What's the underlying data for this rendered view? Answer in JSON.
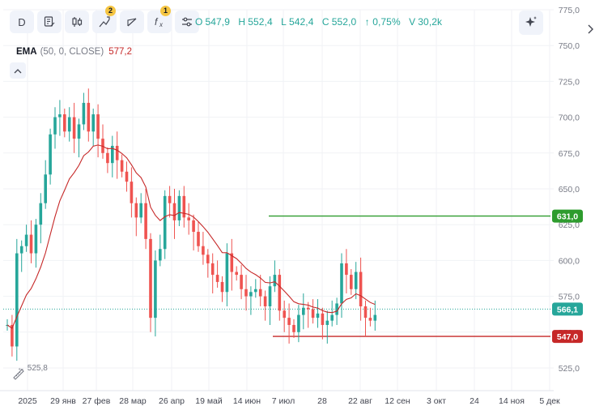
{
  "toolbar": {
    "interval_label": "D",
    "indicators_badge": "2",
    "formula_badge": "1"
  },
  "ohlc": {
    "o_label": "O",
    "o_value": "547,9",
    "h_label": "H",
    "h_value": "552,4",
    "l_label": "L",
    "l_value": "542,4",
    "c_label": "C",
    "c_value": "552,0",
    "change": "↑ 0,75%",
    "v_label": "V",
    "v_value": "30,2k",
    "color": "#26a69a"
  },
  "ema_legend": {
    "name": "EMA",
    "params": "(50, 0, CLOSE)",
    "value": "577,2",
    "color": "#c62828"
  },
  "chart_data": {
    "type": "candlestick",
    "ylim": [
      512,
      776
    ],
    "yticks": [
      "775,0",
      "750,0",
      "725,0",
      "700,0",
      "675,0",
      "650,0",
      "625,0",
      "600,0",
      "575,0",
      "550,0",
      "525,0"
    ],
    "ytick_values": [
      775,
      750,
      725,
      700,
      675,
      650,
      625,
      600,
      575,
      550,
      525
    ],
    "xticks": [
      "2025",
      "29 янв",
      "27 фев",
      "28 мар",
      "26 апр",
      "19 май",
      "14 июн",
      "7 июл",
      "28",
      "22 авг",
      "12 сен",
      "3 окт",
      "24",
      "14 ноя",
      "5 дек"
    ],
    "min_label": "← 525,8",
    "min_value": 525.8,
    "last_price_label": "566,1",
    "last_price": 566.1,
    "hlines": [
      {
        "value": 631.0,
        "label": "631,0",
        "color": "#2e9c2e"
      },
      {
        "value": 547.0,
        "label": "547,0",
        "color": "#c62828"
      }
    ],
    "up_color": "#26a69a",
    "down_color": "#ef5350",
    "ema_color": "#c62828"
  }
}
